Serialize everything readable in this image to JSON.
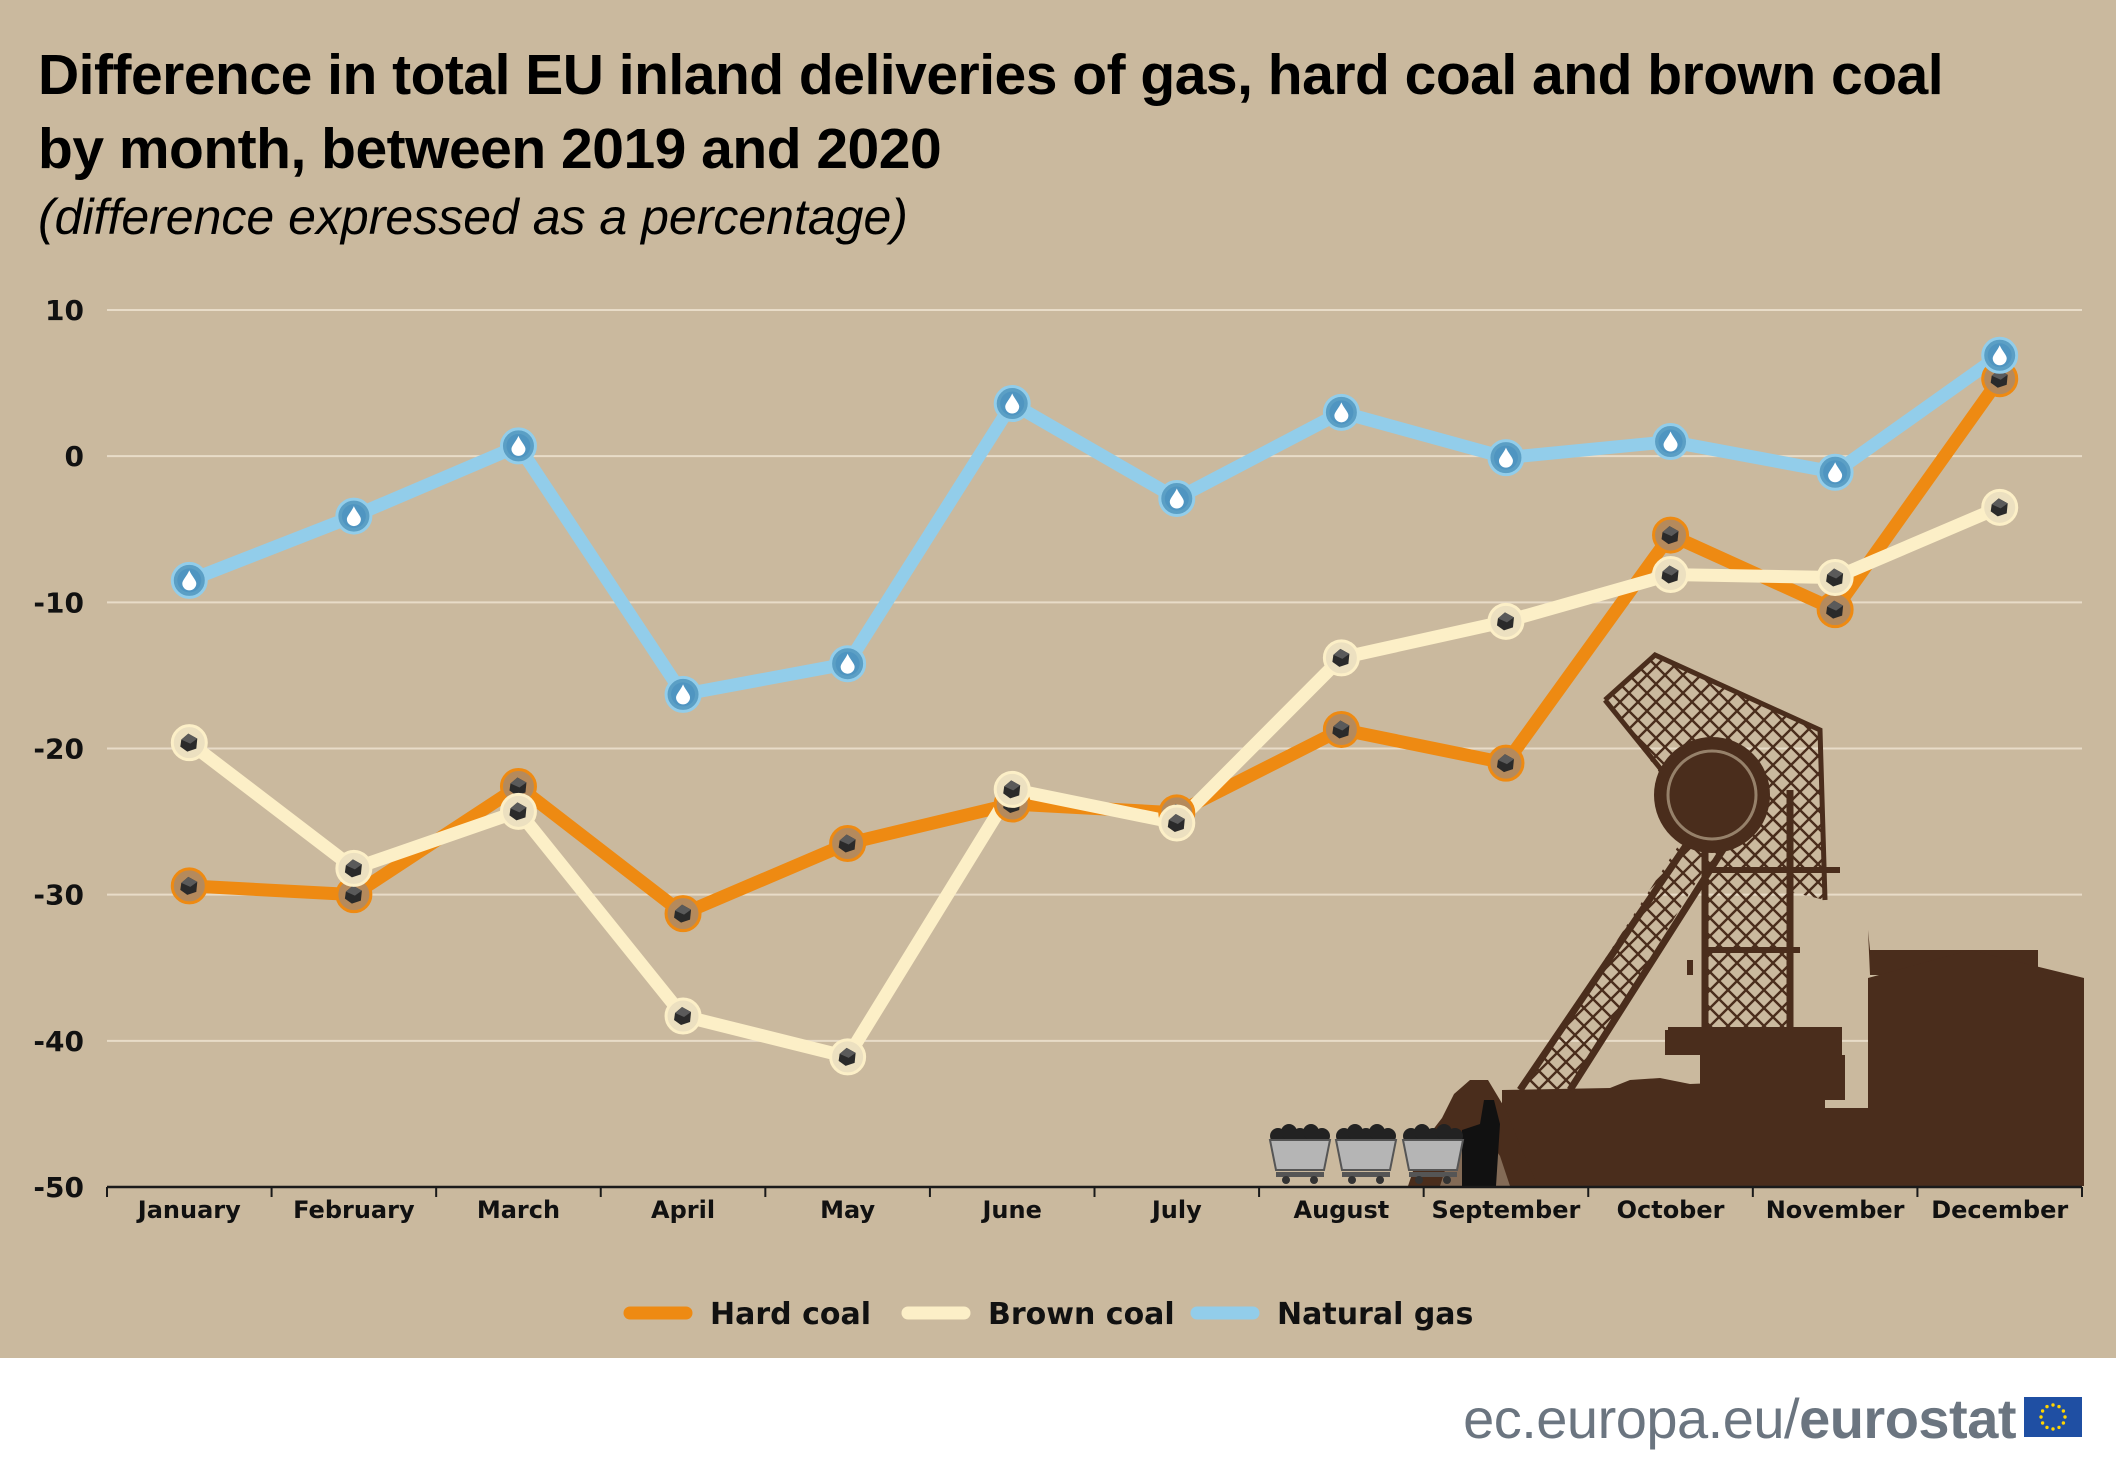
{
  "header": {
    "title": "Difference in total EU inland deliveries of gas, hard coal and brown coal by month, between 2019 and 2020",
    "subtitle": "(difference expressed as a percentage)"
  },
  "footer": {
    "url_prefix": "ec.europa.eu/",
    "url_brand": "eurostat"
  },
  "colors": {
    "background": "#cab99e",
    "hard_coal": "#ee8a12",
    "brown_coal": "#fcefc7",
    "natural_gas": "#92cdea",
    "gridline": "#e8dcc8",
    "silhouette": "#4a2d1c"
  },
  "chart_data": {
    "type": "line",
    "title": "Difference in total EU inland deliveries of gas, hard coal and brown coal by month, between 2019 and 2020",
    "subtitle": "(difference expressed as a percentage)",
    "xlabel": "",
    "ylabel": "",
    "categories": [
      "January",
      "February",
      "March",
      "April",
      "May",
      "June",
      "July",
      "August",
      "September",
      "October",
      "November",
      "December"
    ],
    "ylim": [
      -50,
      10
    ],
    "yticks": [
      10,
      0,
      -10,
      -20,
      -30,
      -40,
      -50
    ],
    "grid": true,
    "legend_position": "bottom",
    "series": [
      {
        "name": "Hard coal",
        "color_key": "hard_coal",
        "marker": "coal",
        "values": [
          -29.4,
          -30.0,
          -22.6,
          -31.3,
          -26.5,
          -23.8,
          -24.4,
          -18.7,
          -21.0,
          -5.4,
          -10.5,
          5.3
        ]
      },
      {
        "name": "Brown coal",
        "color_key": "brown_coal",
        "marker": "coal",
        "values": [
          -19.6,
          -28.2,
          -24.3,
          -38.3,
          -41.1,
          -22.8,
          -25.1,
          -13.8,
          -11.3,
          -8.1,
          -8.3,
          -3.5
        ]
      },
      {
        "name": "Natural gas",
        "color_key": "natural_gas",
        "marker": "drop",
        "values": [
          -8.5,
          -4.1,
          0.7,
          -16.3,
          -14.2,
          3.6,
          -2.9,
          3.0,
          -0.1,
          1.0,
          -1.1,
          6.9
        ]
      }
    ]
  }
}
